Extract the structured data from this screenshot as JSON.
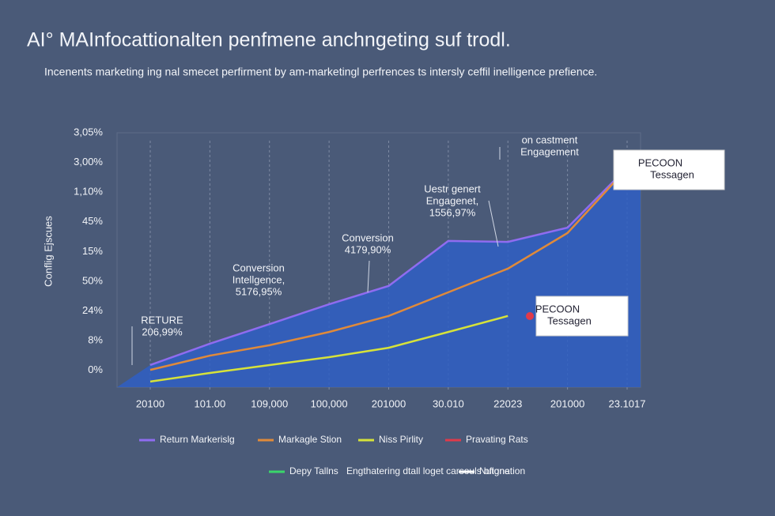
{
  "chart_data": {
    "type": "line",
    "title": "AI° MAInfocattionalten penfmene anchngeting suf trodl.",
    "subtitle": "Incenents marketing ing nal smecet perfirment by am-marketingl perfrences ts intersly ceffil inelligence prefience.",
    "y_label": "Conflig Ejscues",
    "y_axis_labels": [
      "3,05%",
      "3,00%",
      "1,10%",
      "45%",
      "15%",
      "50%",
      "24%",
      "8%",
      "0%"
    ],
    "categories": [
      "20100",
      "101.00",
      "109,000",
      "100,000",
      "201000",
      "30.010",
      "22023",
      "201000",
      "23.1017"
    ],
    "ylim": [
      0,
      100
    ],
    "area_color": "#2f5fc4",
    "series": [
      {
        "name": "Return Markerislg",
        "color": "#8f6cf0",
        "values": [
          8.7,
          17.1,
          24.8,
          32.6,
          39.8,
          57.5,
          57.1,
          62.7,
          86.3
        ]
      },
      {
        "name": "Markagle Stion",
        "color": "#e08a3a",
        "values": [
          6.8,
          12.4,
          16.5,
          21.7,
          28,
          37.3,
          46.6,
          60.6,
          86
        ]
      },
      {
        "name": "Niss Pirlity",
        "color": "#d6e23a",
        "values": [
          2.2,
          5.6,
          8.7,
          11.8,
          15.5,
          21.7,
          28,
          null,
          null
        ]
      },
      {
        "name": "Pravating Rats",
        "color": "#e03a4a",
        "values": [
          null,
          null,
          null,
          null,
          null,
          null,
          null,
          null,
          null
        ]
      },
      {
        "name": "Depy Tallns",
        "color": "#3ad66a",
        "values": [
          null,
          null,
          null,
          null,
          null,
          null,
          null,
          null,
          null
        ]
      },
      {
        "name": "Engthatering dtall loget carsouls ofignation",
        "values": [
          null,
          null,
          null,
          null,
          null,
          null,
          null,
          null,
          null
        ]
      },
      {
        "name": "Nutone",
        "color": "#ffffff",
        "values": [
          null,
          null,
          null,
          null,
          null,
          null,
          null,
          null,
          null
        ]
      }
    ],
    "annotations": [
      {
        "lines": [
          "on castment",
          "Engagement"
        ]
      },
      {
        "lines": [
          "Uestr genert",
          "Engagenet,",
          "1556,97%"
        ]
      },
      {
        "lines": [
          "Conversion",
          "4179,90%"
        ]
      },
      {
        "lines": [
          "Conversion",
          "Intellgence,",
          "5176,95%"
        ]
      },
      {
        "lines": [
          "RETURE",
          "206,99%"
        ]
      },
      {
        "lines": [
          "PECOON",
          "Tessagen"
        ]
      },
      {
        "lines": [
          "PECOON",
          "Tessagen"
        ]
      }
    ]
  }
}
